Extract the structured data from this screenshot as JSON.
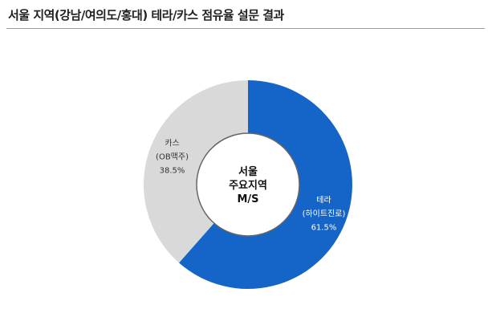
{
  "title": "서울 지역(강남/여의도/홍대) 테라/카스 점유율 설문 결과",
  "chart_data": {
    "type": "pie",
    "variant": "donut",
    "title": "서울 지역(강남/여의도/홍대) 테라/카스 점유율 설문 결과",
    "center_label": [
      "서울",
      "주요지역",
      "M/S"
    ],
    "slices": [
      {
        "name": "테라",
        "sub": "(하이트진로)",
        "value": 61.5,
        "value_label": "61.5%",
        "color": "#1565c8",
        "label_color": "#ffffff"
      },
      {
        "name": "카스",
        "sub": "(OB맥주)",
        "value": 38.5,
        "value_label": "38.5%",
        "color": "#d9d9d9",
        "label_color": "#333333"
      }
    ]
  }
}
